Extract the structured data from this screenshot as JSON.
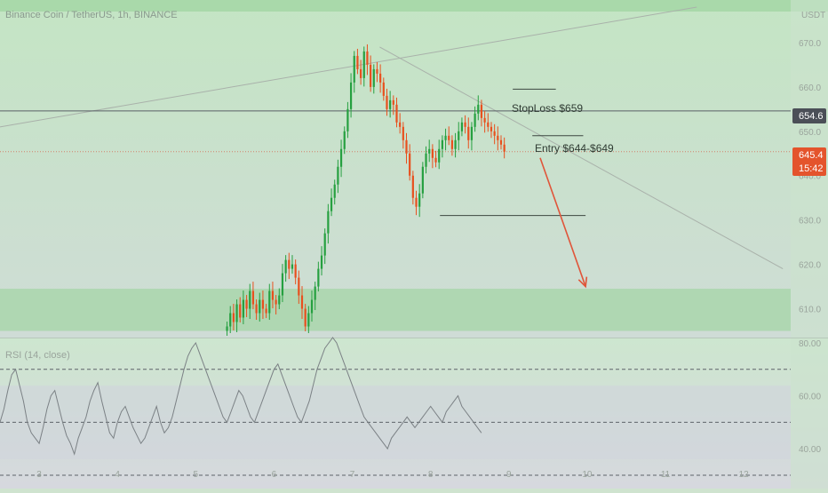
{
  "header": {
    "symbol": "Binance Coin / TetherUS, 1h, BINANCE",
    "currency": "USDT"
  },
  "badges": {
    "stop_price": "654.6",
    "last_price": "645.4",
    "countdown": "15:42"
  },
  "annotations": {
    "stoploss": "StopLoss $659",
    "entry": "Entry $644-$649"
  },
  "colors": {
    "background_top": "#c4e5c4",
    "background_bottom": "#d5d7dc",
    "band": "#a9d6ab",
    "up": "#26a040",
    "down": "#e8501e",
    "arrow": "#e0553a",
    "badge_dark": "#4b4f57",
    "badge_red": "#e4542c"
  },
  "chart_data": [
    {
      "type": "candlestick",
      "title": "Binance Coin / TetherUS, 1h, BINANCE",
      "y_ticks": [
        610,
        620,
        630,
        640,
        650,
        660,
        670
      ],
      "y_tick_labels": [
        "610.0",
        "620.0",
        "630.0",
        "640.0",
        "650.0",
        "660.0",
        "670.0"
      ],
      "y_range": [
        603.5,
        677
      ],
      "x_tick_labels": [
        "3",
        "4",
        "5",
        "6",
        "7",
        "8",
        "9",
        "10",
        "11",
        "12"
      ],
      "x_range": [
        2.5,
        12.6
      ],
      "start_day": 5.4,
      "interval_days": 0.04167,
      "closes": [
        606,
        609,
        607,
        611,
        608,
        612,
        610,
        614,
        611,
        609,
        612,
        610,
        609,
        614,
        612,
        611,
        613,
        618,
        621,
        619,
        620,
        617,
        613,
        610,
        606,
        609,
        612,
        615,
        619,
        622,
        627,
        632,
        635,
        638,
        642,
        646,
        650,
        655,
        661,
        667,
        664,
        662,
        668,
        665,
        660,
        664,
        663,
        661,
        658,
        655,
        657,
        656,
        652,
        651,
        648,
        645,
        640,
        635,
        633,
        636,
        642,
        645,
        646,
        644,
        643,
        646,
        648,
        649,
        648,
        646,
        648,
        650,
        652,
        651,
        648,
        651,
        654,
        656,
        653,
        652,
        651,
        650,
        649,
        648,
        647,
        645.4
      ],
      "horizontal_levels": [
        654.6,
        645.4,
        631
      ],
      "trendline_down": {
        "from": [
          7.35,
          669
        ],
        "to": [
          12.5,
          619
        ]
      },
      "trendline_up": {
        "from": [
          2.5,
          651
        ],
        "to": [
          11.4,
          678
        ]
      },
      "zones": [
        {
          "from": 605,
          "to": 614.5
        }
      ],
      "projection_arrow": {
        "from": [
          9.4,
          644
        ],
        "to": [
          9.98,
          615
        ]
      }
    },
    {
      "type": "line",
      "title": "RSI (14, close)",
      "y_ticks": [
        40,
        60,
        80
      ],
      "y_tick_labels": [
        "40.00",
        "60.00",
        "80.00"
      ],
      "y_range": [
        30,
        80
      ],
      "reference_lines": [
        30,
        50,
        70
      ],
      "x_range": [
        2.5,
        12.6
      ],
      "start_day": 2.5,
      "interval_days": 0.05,
      "values": [
        50,
        55,
        62,
        68,
        70,
        64,
        58,
        50,
        46,
        44,
        42,
        48,
        55,
        60,
        62,
        56,
        50,
        45,
        42,
        38,
        44,
        48,
        52,
        58,
        62,
        65,
        58,
        52,
        46,
        44,
        50,
        54,
        56,
        52,
        48,
        45,
        42,
        44,
        48,
        52,
        56,
        50,
        46,
        48,
        52,
        58,
        64,
        70,
        75,
        78,
        80,
        76,
        72,
        68,
        64,
        60,
        56,
        52,
        50,
        54,
        58,
        62,
        60,
        56,
        52,
        50,
        54,
        58,
        62,
        66,
        70,
        72,
        68,
        64,
        60,
        56,
        52,
        50,
        54,
        58,
        64,
        70,
        74,
        78,
        80,
        82,
        80,
        76,
        72,
        68,
        64,
        60,
        56,
        52,
        50,
        48,
        46,
        44,
        42,
        40,
        44,
        46,
        48,
        50,
        52,
        50,
        48,
        50,
        52,
        54,
        56,
        54,
        52,
        50,
        54,
        56,
        58,
        60,
        56,
        54,
        52,
        50,
        48,
        46
      ]
    }
  ]
}
